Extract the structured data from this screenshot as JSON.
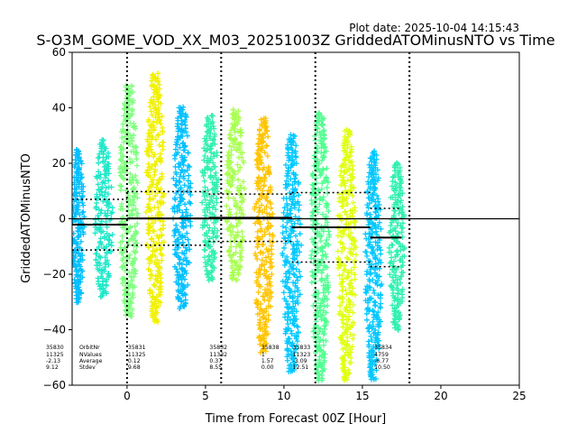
{
  "chart_data": {
    "type": "scatter",
    "title": "S-O3M_GOME_VOD_XX_M03_20251003Z GriddedATOMinusNTO vs Time",
    "plot_date": "Plot date: 2025-10-04 14:15:43",
    "xlabel": "Time from Forecast 00Z [Hour]",
    "ylabel": "GriddedATOMinusNTO",
    "xlim": [
      -3.5,
      25
    ],
    "ylim": [
      -60,
      60
    ],
    "xticks": [
      0,
      5,
      10,
      15,
      20,
      25
    ],
    "yticks": [
      -60,
      -40,
      -20,
      0,
      20,
      40,
      60
    ],
    "vlines": [
      0,
      6,
      12,
      18
    ],
    "hline": 0,
    "orbit_labels": {
      "row_titles": [
        "OrbitNr",
        "NValues",
        "Average",
        "Stdev"
      ],
      "columns": [
        {
          "x": -5.2,
          "orbit": "35830",
          "nvalues": "11325",
          "average": "-2.13",
          "stdev": "9.12"
        },
        {
          "x": 0.0,
          "orbit": "35831",
          "nvalues": "11325",
          "average": "0.12",
          "stdev": "9.68"
        },
        {
          "x": 5.2,
          "orbit": "35832",
          "nvalues": "11332",
          "average": "0.37",
          "stdev": "8.55"
        },
        {
          "x": 8.5,
          "orbit": "35838",
          "nvalues": "1",
          "average": "1.57",
          "stdev": "0.00"
        },
        {
          "x": 10.5,
          "orbit": "35833",
          "nvalues": "11323",
          "average": "-3.09",
          "stdev": "12.51"
        },
        {
          "x": 15.7,
          "orbit": "35834",
          "nvalues": "4759",
          "average": "-6.77",
          "stdev": "10.50"
        }
      ]
    },
    "stat_segments": [
      {
        "x0": -3.5,
        "x1": 0.0,
        "mean": -2.13,
        "stdev": 9.12
      },
      {
        "x0": 0.0,
        "x1": 5.2,
        "mean": 0.12,
        "stdev": 9.68
      },
      {
        "x0": 5.2,
        "x1": 10.5,
        "mean": 0.37,
        "stdev": 8.55
      },
      {
        "x0": 10.5,
        "x1": 15.5,
        "mean": -3.09,
        "stdev": 12.51
      },
      {
        "x0": 15.5,
        "x1": 17.5,
        "mean": -6.77,
        "stdev": 10.5
      }
    ],
    "clusters": [
      {
        "x": -3.1,
        "w": 0.8,
        "lo": -30,
        "hi": 25,
        "color": "#00bfff"
      },
      {
        "x": -1.5,
        "w": 1.2,
        "lo": -28,
        "hi": 28,
        "color": "#1ee8c8"
      },
      {
        "x": 0.1,
        "w": 1.2,
        "lo": -35,
        "hi": 48,
        "color": "#7eff7e"
      },
      {
        "x": 1.8,
        "w": 1.2,
        "lo": -37,
        "hi": 52,
        "color": "#f0f000"
      },
      {
        "x": 3.5,
        "w": 1.2,
        "lo": -32,
        "hi": 40,
        "color": "#00c0ff"
      },
      {
        "x": 5.3,
        "w": 1.1,
        "lo": -22,
        "hi": 37,
        "color": "#30f0b0"
      },
      {
        "x": 6.9,
        "w": 1.2,
        "lo": -22,
        "hi": 39,
        "color": "#a8ff50"
      },
      {
        "x": 8.7,
        "w": 1.2,
        "lo": -48,
        "hi": 36,
        "color": "#ffc400"
      },
      {
        "x": 10.5,
        "w": 1.2,
        "lo": -55,
        "hi": 30,
        "color": "#00c8ff"
      },
      {
        "x": 12.3,
        "w": 1.2,
        "lo": -58,
        "hi": 38,
        "color": "#50ff90"
      },
      {
        "x": 14.0,
        "w": 1.2,
        "lo": -58,
        "hi": 32,
        "color": "#e0ff10"
      },
      {
        "x": 15.7,
        "w": 1.1,
        "lo": -58,
        "hi": 24,
        "color": "#00c8ff"
      },
      {
        "x": 17.2,
        "w": 1.0,
        "lo": -40,
        "hi": 20,
        "color": "#30f0b0"
      }
    ]
  }
}
